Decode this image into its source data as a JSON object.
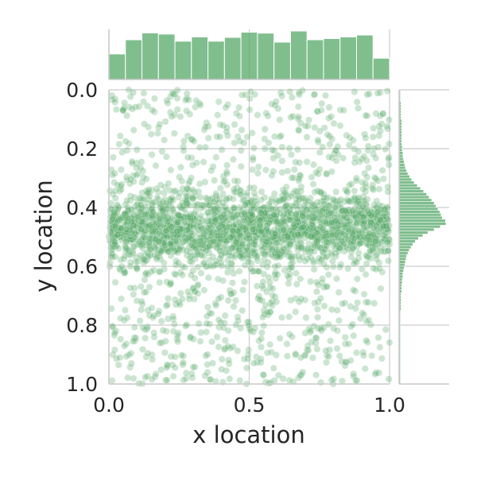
{
  "chart_data": {
    "type": "scatter",
    "title": "",
    "xlabel": "x location",
    "ylabel": "y location",
    "xlim": [
      0.0,
      1.0
    ],
    "ylim": [
      1.0,
      0.0
    ],
    "y_axis_inverted": true,
    "grid": true,
    "xticks": [
      0.0,
      0.5,
      1.0
    ],
    "xtick_labels": [
      "0.0",
      "0.5",
      "1.0"
    ],
    "yticks": [
      0.0,
      0.2,
      0.4,
      0.6,
      0.8,
      1.0
    ],
    "ytick_labels": [
      "0.0",
      "0.2",
      "0.4",
      "0.6",
      "0.8",
      "1.0"
    ],
    "point_color": "#55a868",
    "point_alpha": 0.3,
    "n_points_approx": 3000,
    "marginal_x_histogram": {
      "bin_range": [
        0.0,
        1.0
      ],
      "counts": [
        108,
        168,
        197,
        192,
        162,
        180,
        162,
        178,
        200,
        196,
        158,
        205,
        168,
        173,
        180,
        188,
        90
      ]
    },
    "marginal_y_histogram": {
      "bin_range": [
        0.0,
        1.0
      ],
      "bin_width": 0.01,
      "counts": [
        4,
        4,
        4,
        4,
        6,
        6,
        6,
        6,
        6,
        6,
        8,
        8,
        8,
        8,
        8,
        8,
        8,
        8,
        8,
        10,
        10,
        12,
        12,
        14,
        16,
        18,
        20,
        24,
        28,
        34,
        40,
        48,
        58,
        68,
        78,
        88,
        96,
        104,
        112,
        118,
        124,
        130,
        134,
        138,
        148,
        150,
        132,
        112,
        92,
        76,
        62,
        52,
        44,
        38,
        32,
        28,
        24,
        22,
        20,
        18,
        16,
        14,
        12,
        12,
        10,
        10,
        8,
        8,
        8,
        6,
        6,
        6,
        6,
        6,
        6,
        4,
        4,
        4,
        4,
        4,
        4,
        4,
        4,
        4,
        4,
        4,
        4,
        4,
        4,
        4,
        4,
        4,
        4,
        4,
        4,
        4,
        4,
        4,
        4,
        4
      ],
      "y_distribution": {
        "peak_y": 0.47,
        "sd_core": 0.06
      }
    }
  }
}
